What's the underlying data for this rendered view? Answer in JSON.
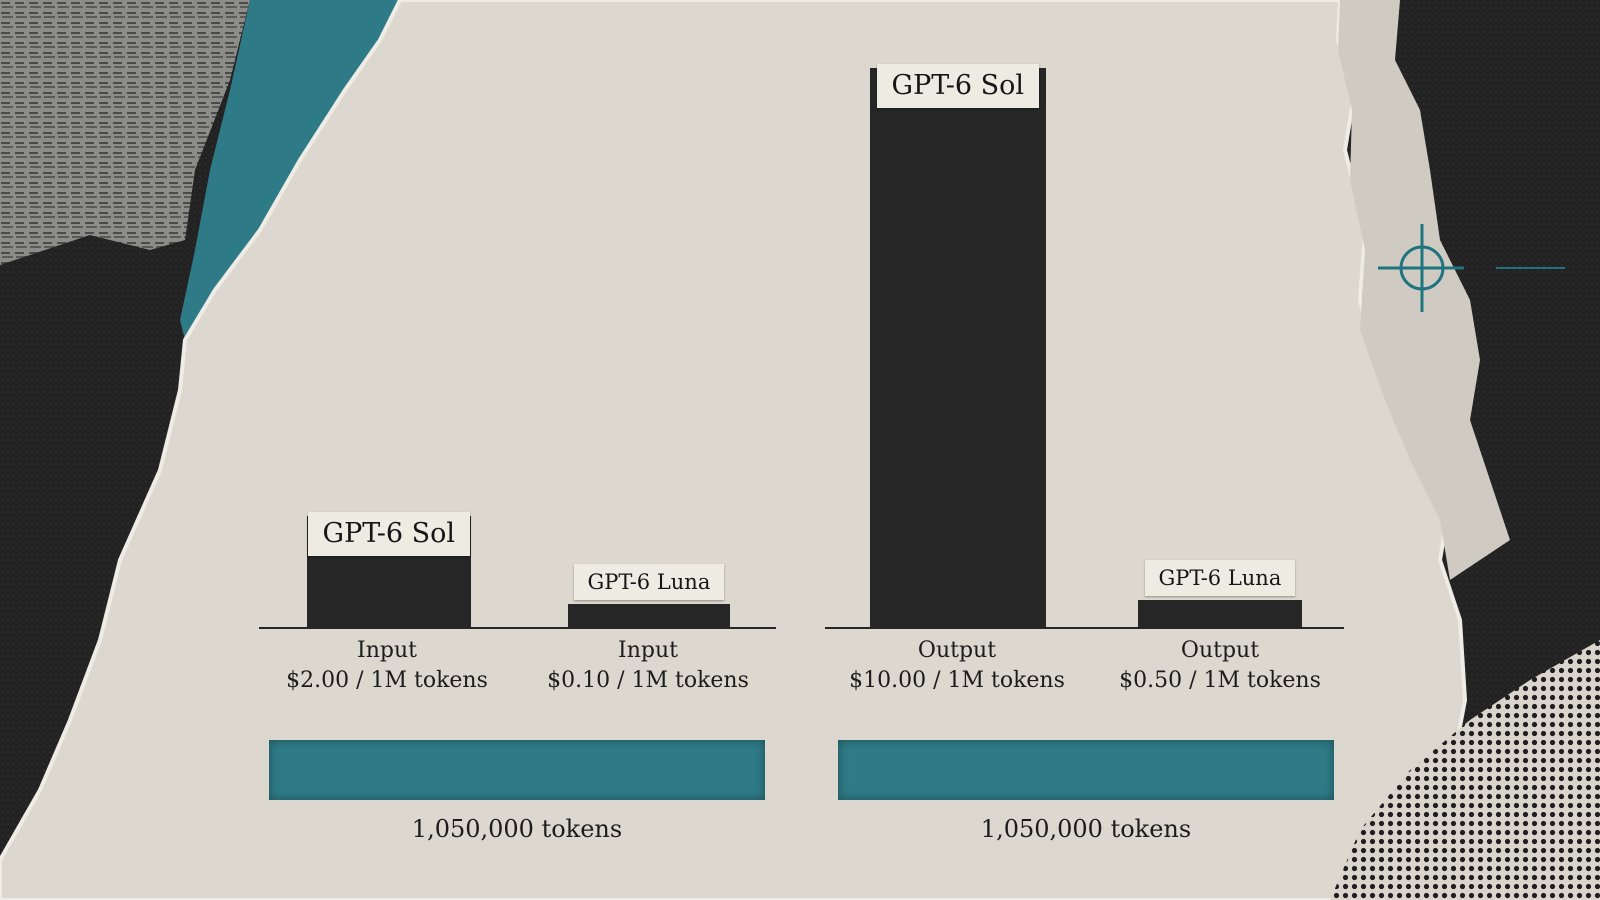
{
  "chart_data": [
    {
      "type": "bar",
      "categories": [
        "Input\n$2.00 / 1M tokens",
        "Input\n$0.10 / 1M tokens"
      ],
      "series": [
        {
          "values": [
            2.0,
            0.1
          ]
        }
      ],
      "bar_labels": [
        "GPT-6 Sol",
        "GPT-6 Luna"
      ],
      "category_lines": [
        [
          "Input",
          "$2.00 / 1M tokens"
        ],
        [
          "Input",
          "$0.10 / 1M tokens"
        ]
      ],
      "footer_label": "1,050,000 tokens",
      "title": "",
      "xlabel": "",
      "ylabel": "",
      "ylim": [
        0,
        10.5
      ],
      "grid": false
    },
    {
      "type": "bar",
      "categories": [
        "Output\n$10.00 / 1M tokens",
        "Output\n$0.50 / 1M tokens"
      ],
      "series": [
        {
          "values": [
            10.0,
            0.5
          ]
        }
      ],
      "bar_labels": [
        "GPT-6 Sol",
        "GPT-6 Luna"
      ],
      "category_lines": [
        [
          "Output",
          "$10.00 / 1M tokens"
        ],
        [
          "Output",
          "$0.50 / 1M tokens"
        ]
      ],
      "footer_label": "1,050,000 tokens",
      "title": "",
      "xlabel": "",
      "ylabel": "",
      "ylim": [
        0,
        10.5
      ],
      "grid": false
    }
  ],
  "colors": {
    "paper": "#dcd8cf",
    "bar": "#262626",
    "tape": "#2e7a86",
    "accent": "#1f7480",
    "tag": "#eeebe3"
  },
  "decor": {
    "crosshair_icon": "crosshair-icon",
    "halftone": "halftone-dots"
  }
}
